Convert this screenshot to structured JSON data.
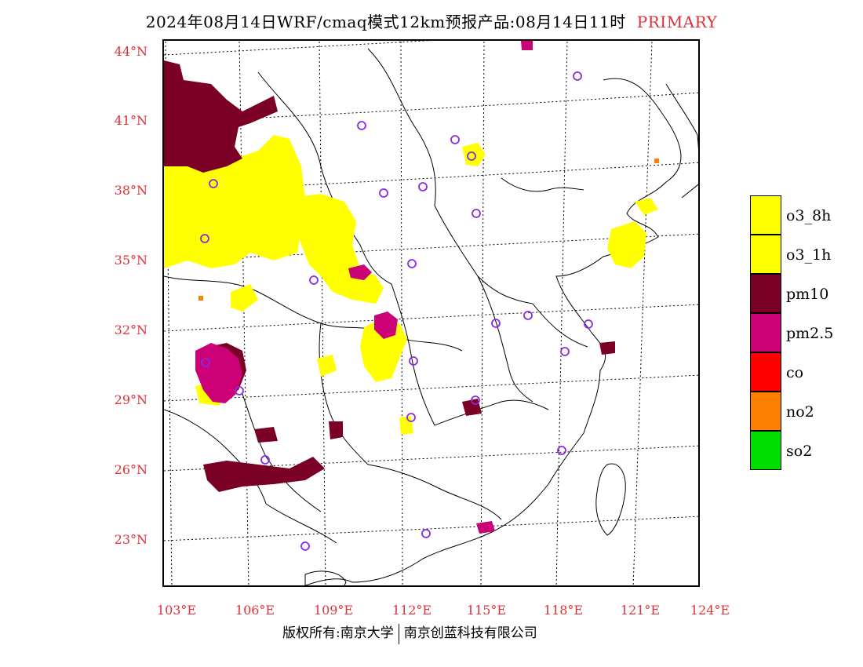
{
  "title": {
    "text": "2024年08月14日WRF/cmaq模式12km预报产品:08月14日11时",
    "tag": "PRIMARY"
  },
  "colors": {
    "o3_8h": "#ffff00",
    "o3_1h": "#ffff00",
    "pm10": "#7a0025",
    "pm25": "#cc0077",
    "co": "#ff0000",
    "no2": "#ff7f00",
    "so2": "#00dd00",
    "station": "#8a2be2",
    "label": "#e0303a"
  },
  "lat_labels": [
    "44°N",
    "41°N",
    "38°N",
    "35°N",
    "32°N",
    "29°N",
    "26°N",
    "23°N"
  ],
  "lon_labels": [
    "103°E",
    "106°E",
    "109°E",
    "112°E",
    "115°E",
    "118°E",
    "121°E",
    "124°E"
  ],
  "legend": [
    {
      "label": "o3_8h",
      "color": "#ffff00"
    },
    {
      "label": "o3_1h",
      "color": "#ffff00"
    },
    {
      "label": "pm10",
      "color": "#7a0025"
    },
    {
      "label": "pm2.5",
      "color": "#cc0077"
    },
    {
      "label": "co",
      "color": "#ff0000"
    },
    {
      "label": "no2",
      "color": "#ff7f00"
    },
    {
      "label": "so2",
      "color": "#00dd00"
    }
  ],
  "footer": {
    "left": "版权所有:南京大学",
    "right": "南京创蓝科技有限公司"
  }
}
